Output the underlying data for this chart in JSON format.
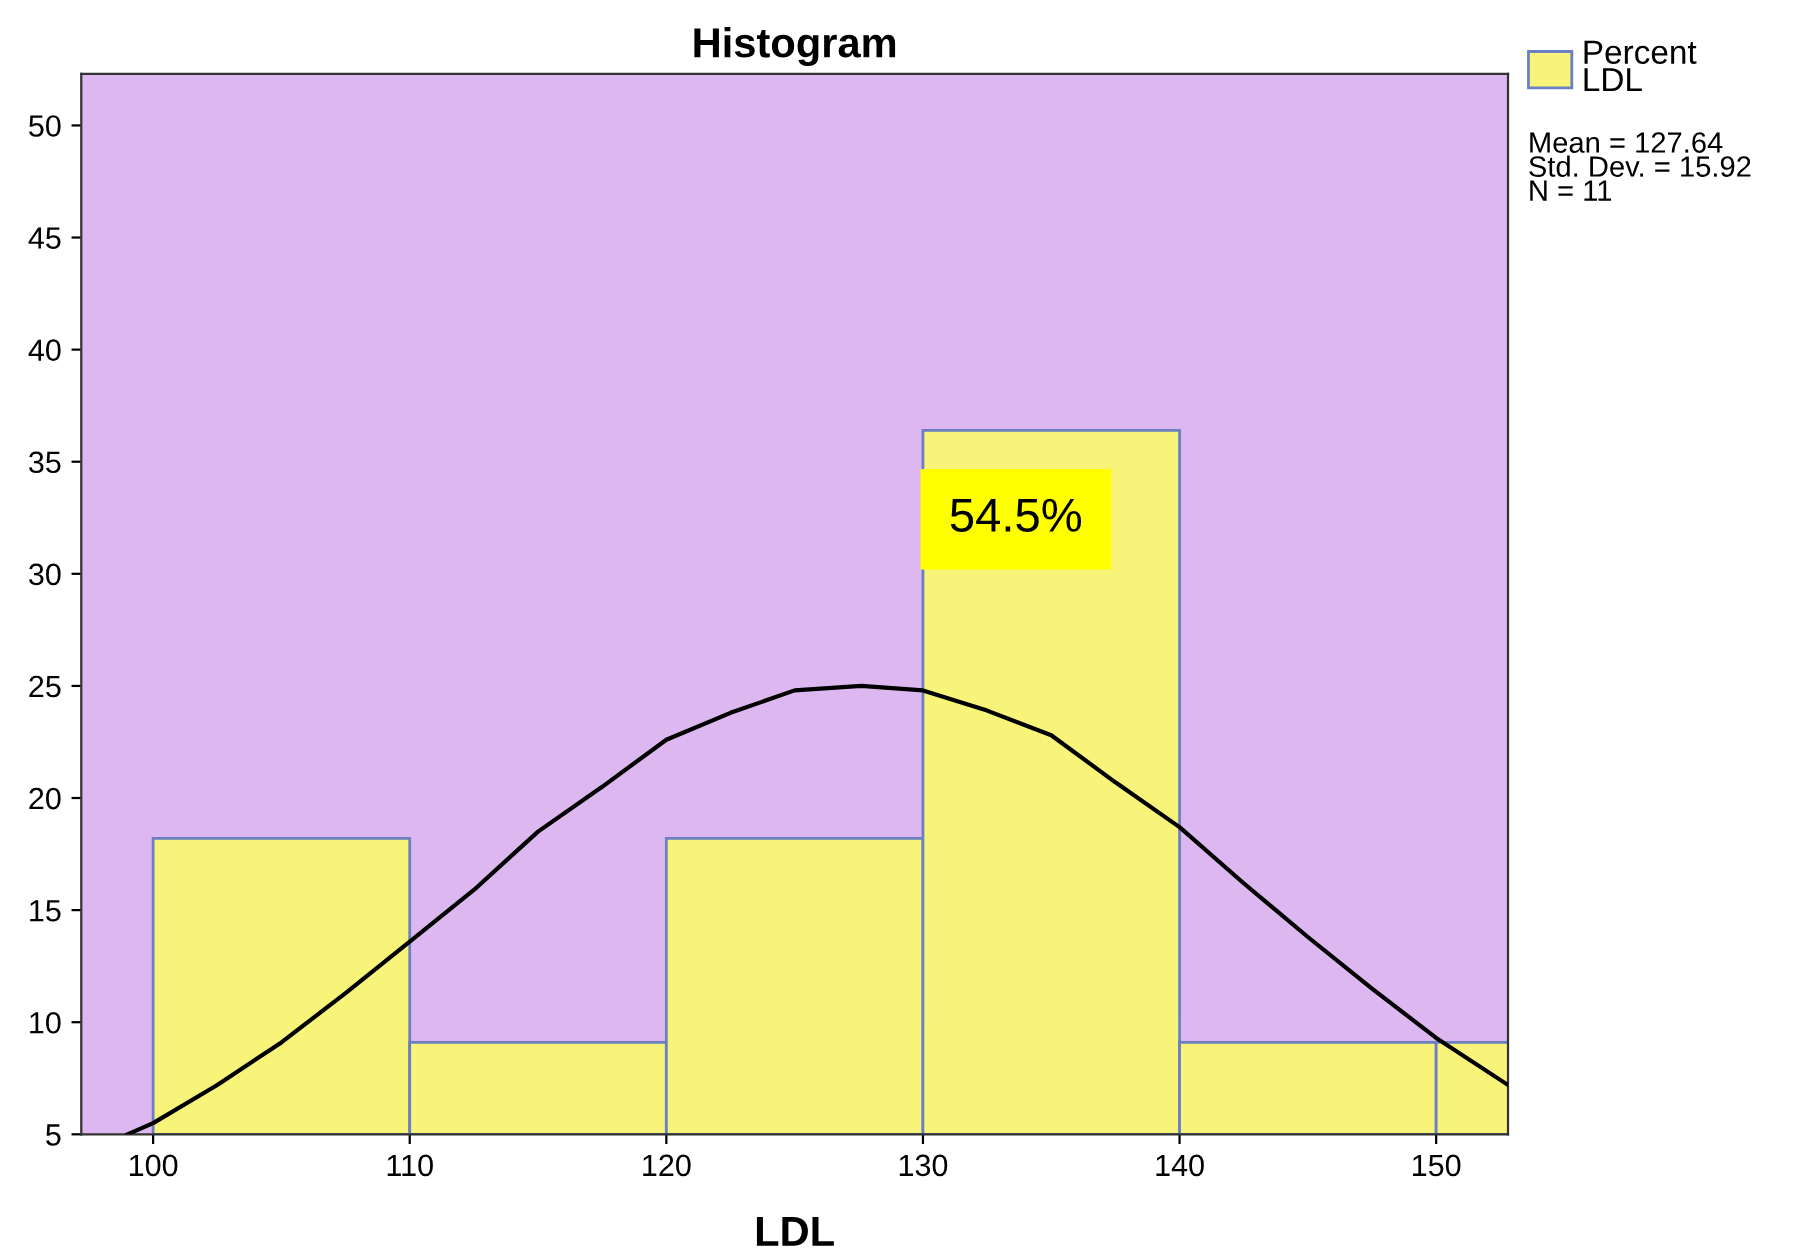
{
  "chart_data": {
    "type": "histogram",
    "title": "Histogram",
    "xlabel": "LDL",
    "bins": [
      100,
      110,
      120,
      130,
      140,
      150,
      160
    ],
    "series": [
      {
        "name": "Percent\nLDL",
        "color": "#f8f47a",
        "values": [
          18.2,
          9.1,
          18.2,
          36.4,
          9.1,
          9.1
        ]
      },
      {
        "type": "line",
        "color": "#000000",
        "x": [
          99,
          100,
          102.5,
          105,
          107.5,
          110,
          112.5,
          115,
          117.5,
          120,
          122.5,
          125,
          127.6,
          130,
          132.5,
          135,
          137.5,
          140,
          142.5,
          145,
          147.5,
          150,
          152.8
        ],
        "values": [
          5.0,
          5.5,
          7.2,
          9.1,
          11.3,
          13.6,
          15.9,
          18.5,
          20.5,
          22.6,
          23.8,
          24.8,
          25.0,
          24.8,
          23.9,
          22.8,
          20.7,
          18.7,
          16.2,
          13.8,
          11.5,
          9.3,
          7.2
        ]
      }
    ],
    "annotations": [
      "54.5%",
      "Mean = 127.64\nStd. Dev. = 15.92\nN = 11"
    ],
    "xlim": [
      97.2,
      152.8
    ],
    "xticks": [
      100,
      110,
      120,
      130,
      140,
      150
    ],
    "ylim": [
      5,
      52.3
    ],
    "yticks": [
      5,
      10,
      15,
      20,
      25,
      30,
      35,
      40,
      45,
      50
    ],
    "grid": false,
    "legend": "top right"
  }
}
